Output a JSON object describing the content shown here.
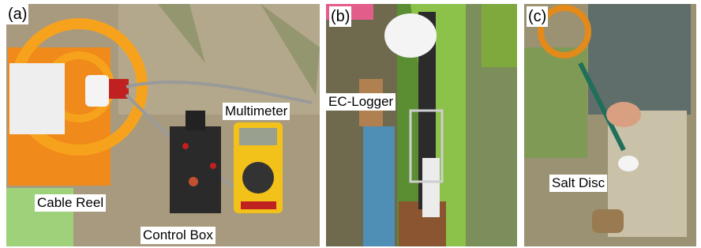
{
  "panels": [
    {
      "label": "(a)",
      "annotations": [
        "Multimeter",
        "Cable Reel",
        "Control Box"
      ]
    },
    {
      "label": "(b)",
      "annotations": [
        "EC-Logger"
      ]
    },
    {
      "label": "(c)",
      "annotations": [
        "Salt Disc"
      ]
    }
  ]
}
